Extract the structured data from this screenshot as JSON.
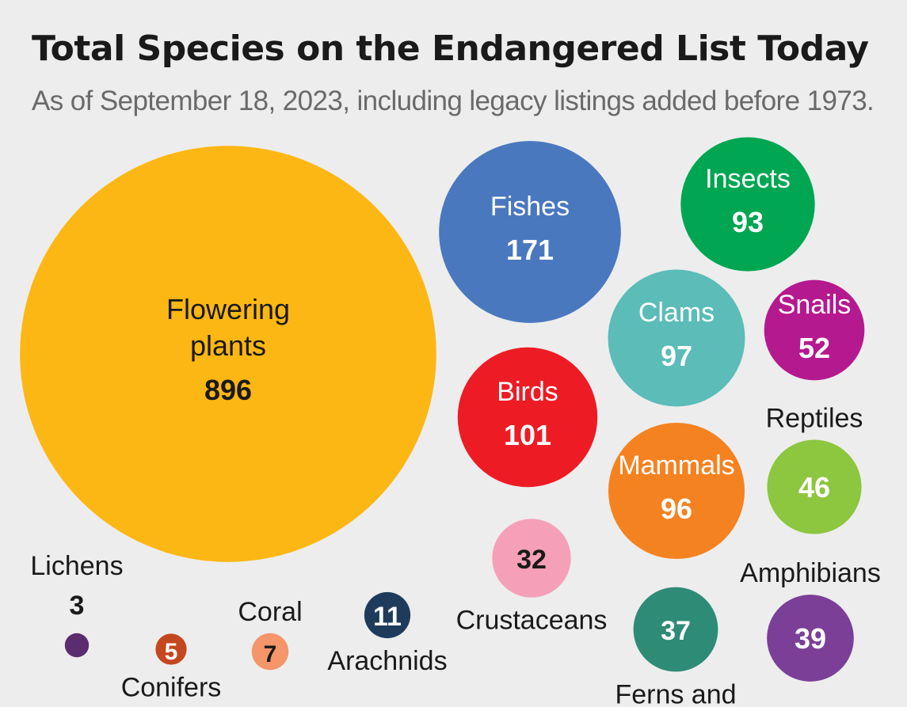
{
  "title": "Total Species on the Endangered List Today",
  "subtitle": "As of September 18, 2023, including legacy listings added before 1973.",
  "chart_data": {
    "type": "bubble",
    "series": [
      {
        "category": "Flowering plants",
        "value": 896,
        "color": "#fdb714"
      },
      {
        "category": "Fishes",
        "value": 171,
        "color": "#4a78bf"
      },
      {
        "category": "Insects",
        "value": 93,
        "color": "#00a651"
      },
      {
        "category": "Clams",
        "value": 97,
        "color": "#5bbcb8"
      },
      {
        "category": "Snails",
        "value": 52,
        "color": "#b5198f"
      },
      {
        "category": "Birds",
        "value": 101,
        "color": "#ed1c24"
      },
      {
        "category": "Mammals",
        "value": 96,
        "color": "#f58220"
      },
      {
        "category": "Reptiles",
        "value": 46,
        "color": "#8dc63f"
      },
      {
        "category": "Amphibians",
        "value": 39,
        "color": "#7b3f98"
      },
      {
        "category": "Crustaceans",
        "value": 32,
        "color": "#f5a0b8"
      },
      {
        "category": "Ferns and",
        "value": 37,
        "color": "#2e8b75"
      },
      {
        "category": "Arachnids",
        "value": 11,
        "color": "#1f3b5c"
      },
      {
        "category": "Coral",
        "value": 7,
        "color": "#f4956a"
      },
      {
        "category": "Conifers",
        "value": 5,
        "color": "#c4481f"
      },
      {
        "category": "Lichens",
        "value": 3,
        "color": "#5b2d6e"
      }
    ]
  }
}
